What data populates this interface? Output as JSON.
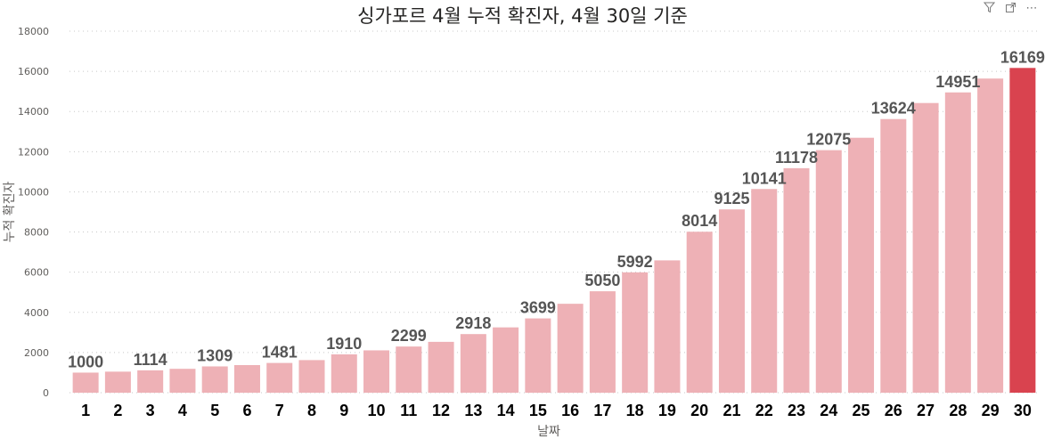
{
  "chart_data": {
    "type": "bar",
    "title": "싱가포르 4월 누적 확진자, 4월 30일 기준",
    "xlabel": "날짜",
    "ylabel": "누적 확진자",
    "ylim": [
      0,
      18000
    ],
    "yticks": [
      0,
      2000,
      4000,
      6000,
      8000,
      10000,
      12000,
      14000,
      16000,
      18000
    ],
    "grid": true,
    "categories": [
      "1",
      "2",
      "3",
      "4",
      "5",
      "6",
      "7",
      "8",
      "9",
      "10",
      "11",
      "12",
      "13",
      "14",
      "15",
      "16",
      "17",
      "18",
      "19",
      "20",
      "21",
      "22",
      "23",
      "24",
      "25",
      "26",
      "27",
      "28",
      "29",
      "30"
    ],
    "values": [
      1000,
      1049,
      1114,
      1189,
      1309,
      1375,
      1481,
      1623,
      1910,
      2108,
      2299,
      2532,
      2918,
      3252,
      3699,
      4427,
      5050,
      5992,
      6588,
      8014,
      9125,
      10141,
      11178,
      12075,
      12693,
      13624,
      14423,
      14951,
      15641,
      16169
    ],
    "data_labels": {
      "1": "1000",
      "3": "1114",
      "5": "1309",
      "7": "1481",
      "9": "1910",
      "11": "2299",
      "13": "2918",
      "15": "3699",
      "17": "5050",
      "18": "5992",
      "20": "8014",
      "21": "9125",
      "22": "10141",
      "23": "11178",
      "24": "12075",
      "26": "13624",
      "28": "14951",
      "30": "16169"
    },
    "colors": {
      "bar": "#eeb1b6",
      "highlight": "#d9434f",
      "grid": "#c8c8c8",
      "axis_text": "#605e5c",
      "category_text": "#000000",
      "data_label": "#555555"
    },
    "highlight_category": "30"
  },
  "toolbar": {
    "filter_icon": "filter-icon",
    "focus_icon": "focus-mode-icon",
    "more_icon": "more-options-icon",
    "more_glyph": "⋯"
  }
}
